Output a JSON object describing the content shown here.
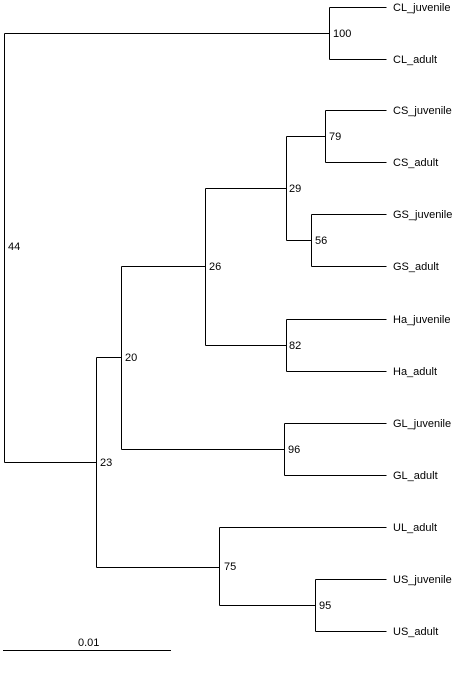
{
  "tree": {
    "leaves": {
      "cl_juv": "CL_juvenile",
      "cl_ad": "CL_adult",
      "cs_juv": "CS_juvenile",
      "cs_ad": "CS_adult",
      "gs_juv": "GS_juvenile",
      "gs_ad": "GS_adult",
      "ha_juv": "Ha_juvenile",
      "ha_ad": "Ha_adult",
      "gl_juv": "GL_juvenile",
      "gl_ad": "GL_adult",
      "ul_ad": "UL_adult",
      "us_juv": "US_juvenile",
      "us_ad": "US_adult"
    },
    "bootstrap": {
      "cl": "100",
      "cs": "79",
      "gs": "56",
      "cs_gs": "29",
      "ha": "82",
      "csgs_ha": "26",
      "gl": "96",
      "inner20": "20",
      "us": "95",
      "ul_us": "75",
      "inner23": "23",
      "root": "44"
    },
    "scale_bar_label": "0.01"
  }
}
